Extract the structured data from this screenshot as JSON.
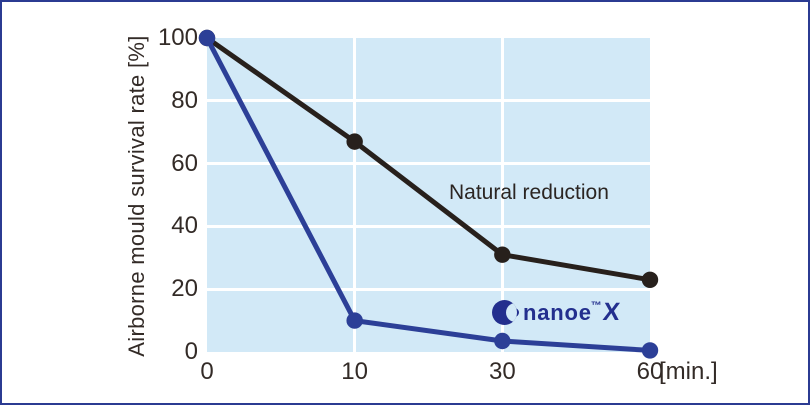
{
  "figure": {
    "border_color": "#2b3b92",
    "background": "#ffffff"
  },
  "chart_data": {
    "type": "line",
    "title": "",
    "ylabel": "Airborne mould survival rate [%]",
    "x_unit": "[min.]",
    "x_categories": [
      "0",
      "10",
      "30",
      "60"
    ],
    "x_spacing": "equal",
    "ylim": [
      0,
      100
    ],
    "yticks": [
      0,
      20,
      40,
      60,
      80,
      100
    ],
    "grid": "on",
    "plot_bg": "#d2e9f7",
    "grid_color": "#ffffff",
    "legend_position": "inline-annotations",
    "series": [
      {
        "name": "Natural reduction",
        "color": "#27201c",
        "marker": "circle",
        "values": [
          100,
          67,
          31,
          23
        ]
      },
      {
        "name": "nanoe X",
        "color": "#2c3f97",
        "marker": "circle",
        "values": [
          100,
          10,
          3.5,
          0.5
        ]
      }
    ]
  },
  "annotations": {
    "natural": "Natural reduction",
    "logo_text": "nanoe",
    "logo_tm": "™",
    "logo_x": "X",
    "logo_color": "#232f8e"
  }
}
